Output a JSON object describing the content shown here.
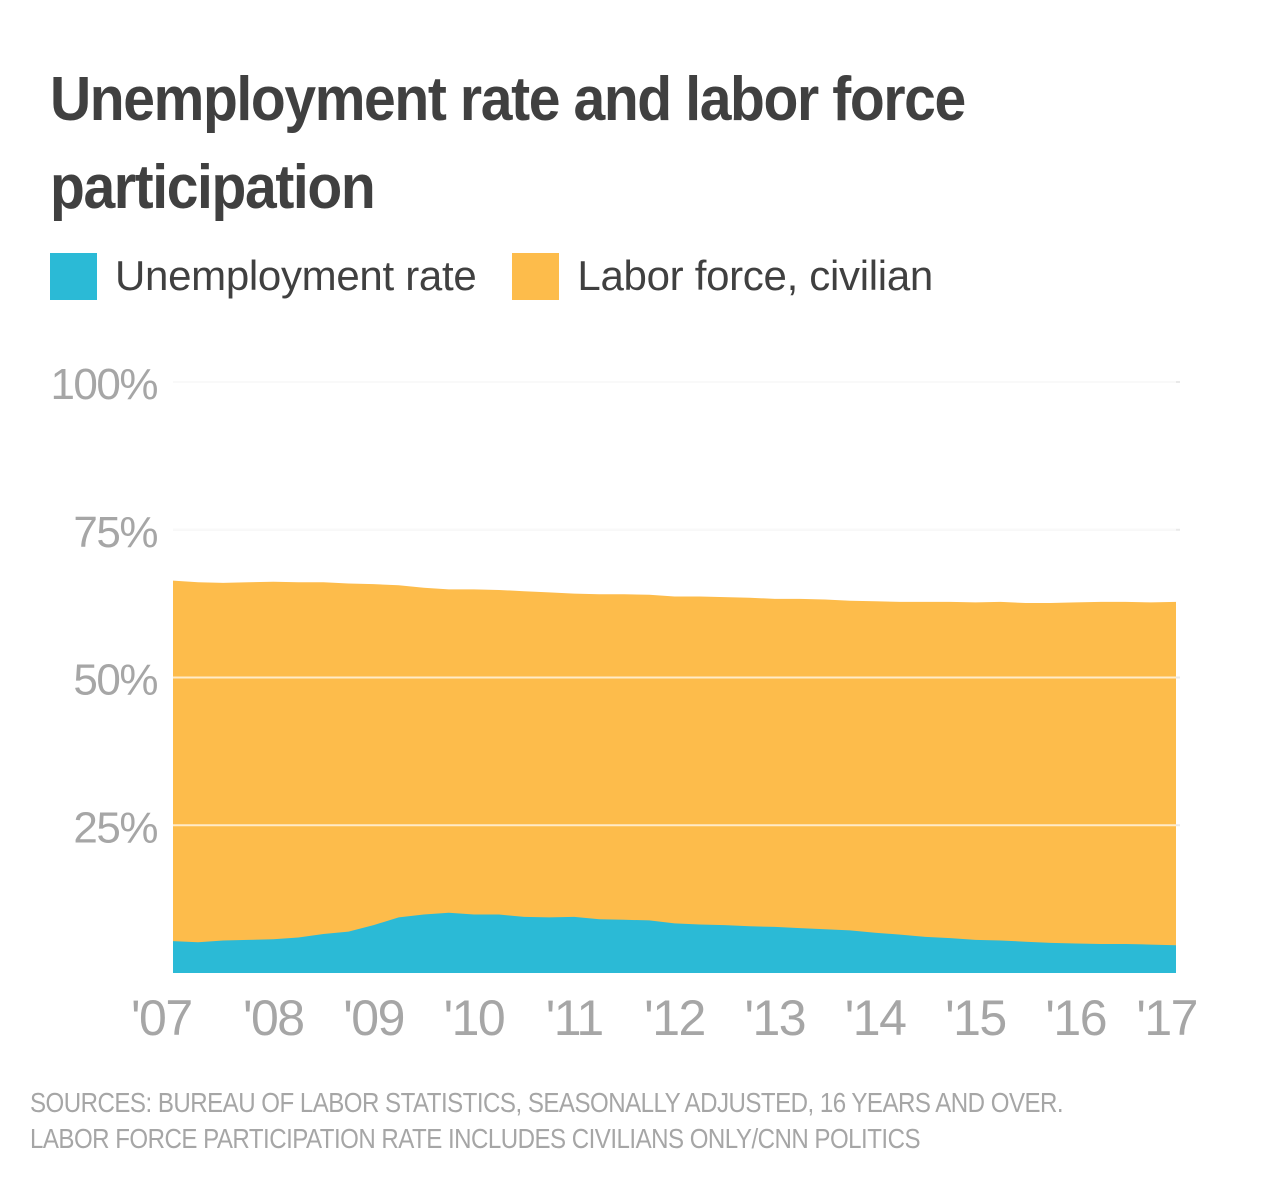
{
  "chart_data": {
    "type": "area",
    "title": "Unemployment rate and labor force participation",
    "x_tick_labels": [
      "'07",
      "'08",
      "'09",
      "'10",
      "'11",
      "'12",
      "'13",
      "'14",
      "'15",
      "'16",
      "'17"
    ],
    "y_tick_labels": [
      "100%",
      "75%",
      "50%",
      "25%"
    ],
    "y_ticks": [
      100,
      75,
      50,
      25
    ],
    "ylim": [
      0,
      100
    ],
    "xlim": [
      2007.0,
      2017.0
    ],
    "grid": true,
    "legend_position": "top-left",
    "series": [
      {
        "name": "Unemployment rate",
        "color": "#2bbad6",
        "x": [
          2007.0,
          2007.25,
          2007.5,
          2007.75,
          2008.0,
          2008.25,
          2008.5,
          2008.75,
          2009.0,
          2009.25,
          2009.5,
          2009.75,
          2010.0,
          2010.25,
          2010.5,
          2010.75,
          2011.0,
          2011.25,
          2011.5,
          2011.75,
          2012.0,
          2012.25,
          2012.5,
          2012.75,
          2013.0,
          2013.25,
          2013.5,
          2013.75,
          2014.0,
          2014.25,
          2014.5,
          2014.75,
          2015.0,
          2015.25,
          2015.5,
          2015.75,
          2016.0,
          2016.25,
          2016.5,
          2016.75,
          2017.0
        ],
        "values": [
          5.4,
          5.2,
          5.5,
          5.6,
          5.7,
          6.0,
          6.6,
          7.0,
          8.1,
          9.4,
          9.9,
          10.2,
          9.9,
          9.9,
          9.5,
          9.4,
          9.5,
          9.1,
          9.0,
          8.9,
          8.4,
          8.2,
          8.1,
          7.9,
          7.8,
          7.6,
          7.4,
          7.2,
          6.8,
          6.5,
          6.1,
          5.9,
          5.6,
          5.5,
          5.3,
          5.1,
          5.0,
          4.9,
          4.9,
          4.8,
          4.7
        ]
      },
      {
        "name": "Labor force, civilian",
        "color": "#fdbc4b",
        "x": [
          2007.0,
          2007.25,
          2007.5,
          2007.75,
          2008.0,
          2008.25,
          2008.5,
          2008.75,
          2009.0,
          2009.25,
          2009.5,
          2009.75,
          2010.0,
          2010.25,
          2010.5,
          2010.75,
          2011.0,
          2011.25,
          2011.5,
          2011.75,
          2012.0,
          2012.25,
          2012.5,
          2012.75,
          2013.0,
          2013.25,
          2013.5,
          2013.75,
          2014.0,
          2014.25,
          2014.5,
          2014.75,
          2015.0,
          2015.25,
          2015.5,
          2015.75,
          2016.0,
          2016.25,
          2016.5,
          2016.75,
          2017.0
        ],
        "values": [
          66.4,
          66.1,
          66.0,
          66.1,
          66.2,
          66.1,
          66.1,
          65.9,
          65.8,
          65.6,
          65.2,
          64.9,
          64.9,
          64.8,
          64.6,
          64.4,
          64.2,
          64.1,
          64.1,
          64.0,
          63.7,
          63.7,
          63.6,
          63.5,
          63.3,
          63.3,
          63.2,
          63.0,
          62.9,
          62.8,
          62.8,
          62.8,
          62.7,
          62.8,
          62.6,
          62.6,
          62.7,
          62.8,
          62.8,
          62.7,
          62.8
        ]
      }
    ]
  },
  "sources_line1": "SOURCES: BUREAU OF LABOR STATISTICS, SEASONALLY ADJUSTED, 16 YEARS AND OVER.",
  "sources_line2": "LABOR FORCE PARTICIPATION RATE INCLUDES CIVILIANS ONLY/CNN POLITICS",
  "colors": {
    "grid": "#e9e9e9",
    "tick_text": "#a6a6a6",
    "title_text": "#404040"
  }
}
